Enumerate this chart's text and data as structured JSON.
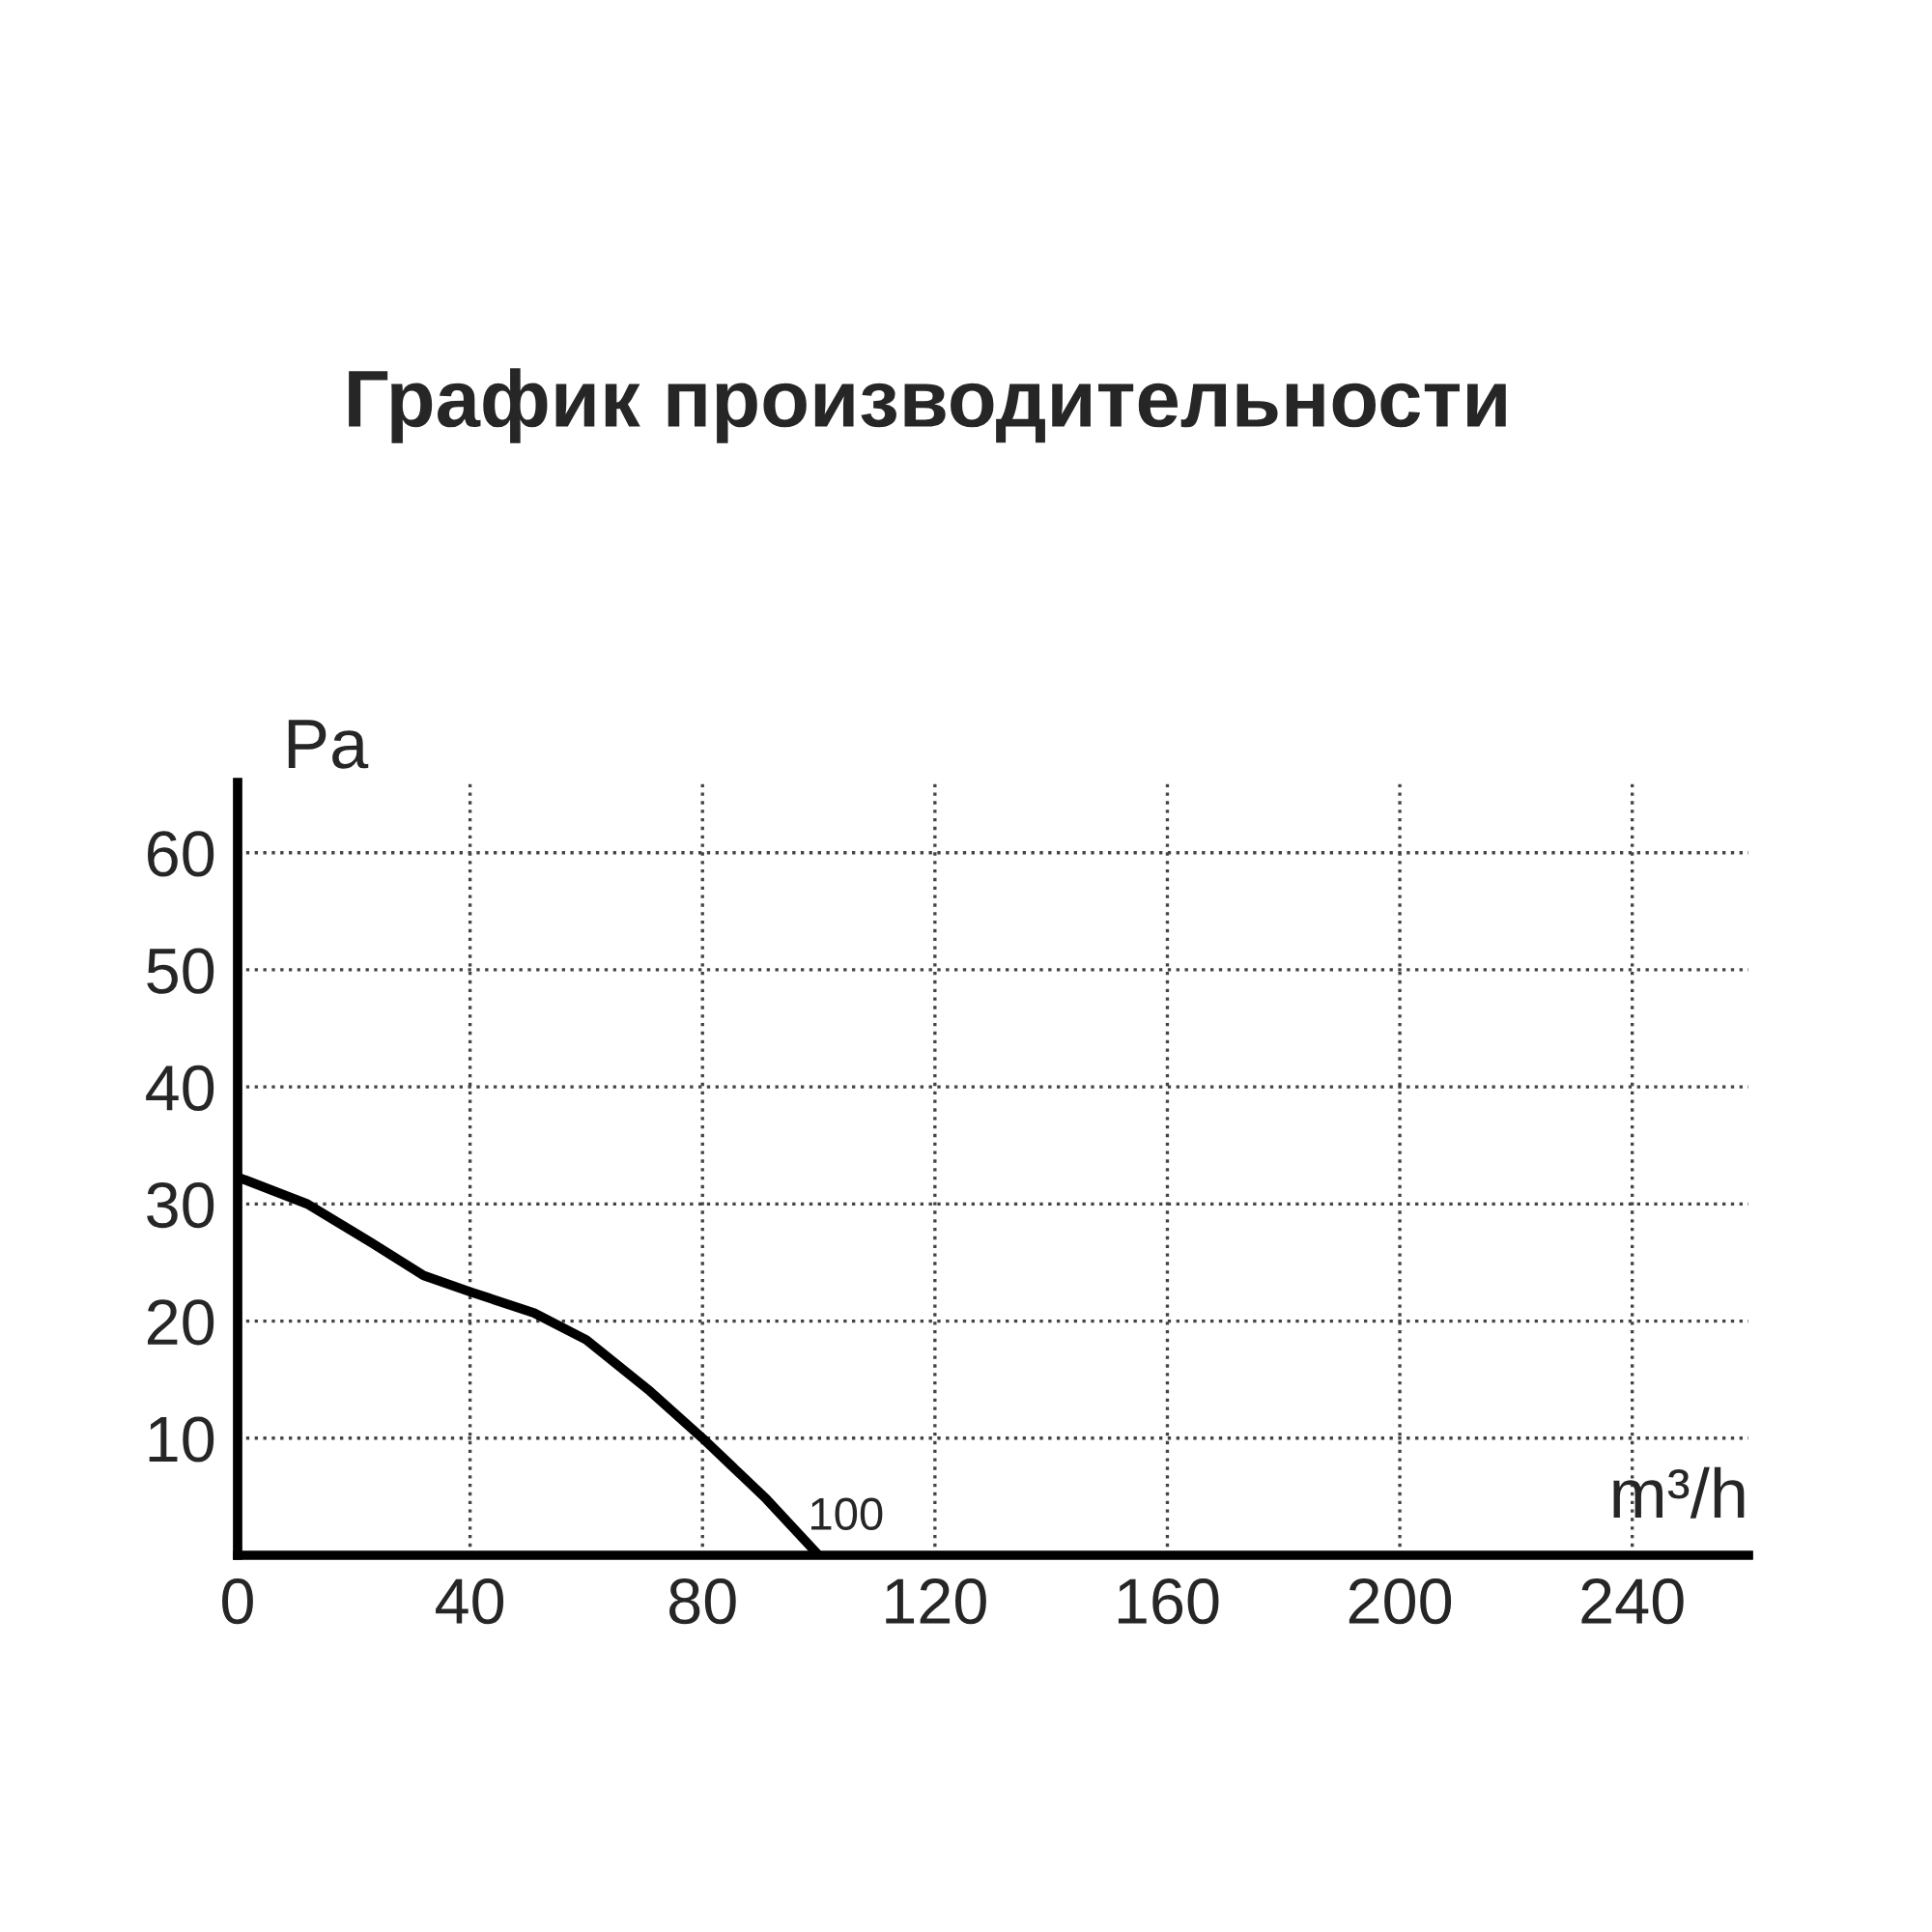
{
  "chart_data": {
    "type": "line",
    "title": "График производительности",
    "xlabel": "m³/h",
    "ylabel": "Pa",
    "x": [
      0,
      12,
      23,
      32,
      40,
      51,
      60,
      71,
      80,
      91,
      100
    ],
    "series": [
      {
        "color": "#000000",
        "values": [
          32.3,
          30,
          26.7,
          23.9,
          22.5,
          20.7,
          18.4,
          14,
          10,
          4.8,
          0
        ]
      }
    ],
    "xlim": [
      0,
      260
    ],
    "ylim": [
      0,
      66
    ],
    "xticks": [
      0,
      40,
      80,
      120,
      160,
      200,
      240
    ],
    "yticks": [
      {
        "value": 0,
        "label": null
      },
      10,
      20,
      30,
      40,
      50,
      60
    ],
    "grid": true,
    "line_style": "solid",
    "marker": "none",
    "legend": false,
    "annotations": [
      {
        "text": "100",
        "x": 100,
        "y": 0
      }
    ]
  }
}
